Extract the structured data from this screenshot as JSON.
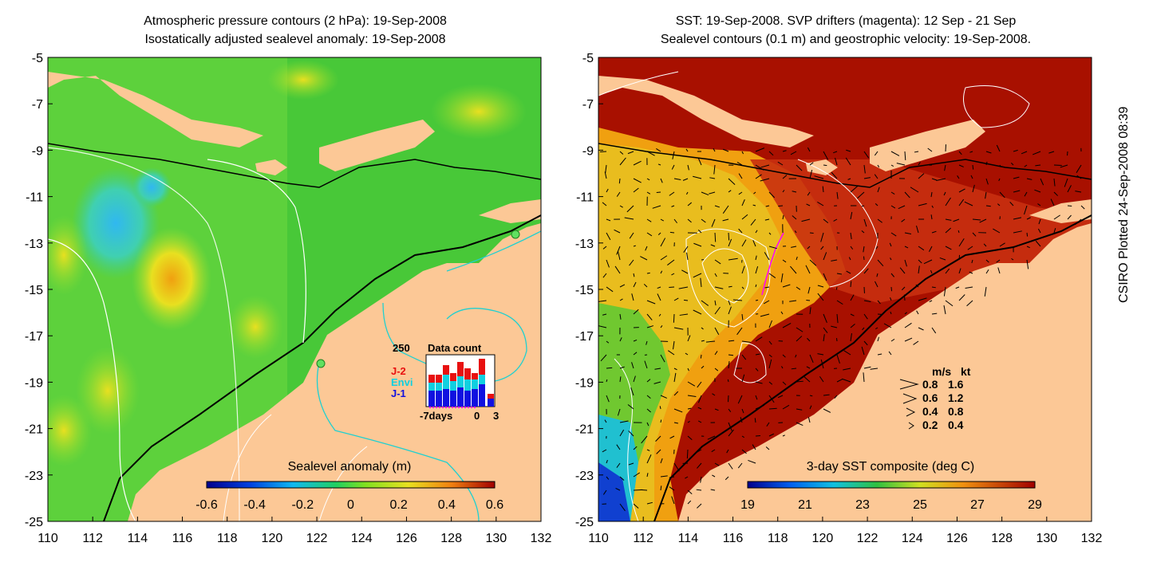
{
  "left_panel": {
    "title_line1": "Atmospheric pressure contours (2 hPa): 19-Sep-2008",
    "title_line2": "Isostatically adjusted sealevel anomaly: 19-Sep-2008",
    "colorbar_label": "Sealevel anomaly (m)",
    "colorbar_ticks": [
      "-0.6",
      "-0.4",
      "-0.2",
      "0",
      "0.2",
      "0.4",
      "0.6"
    ],
    "inset": {
      "title": "Data count",
      "ymax_label": "250",
      "legend": [
        {
          "label": "J-2",
          "color": "#e81010"
        },
        {
          "label": "Envi",
          "color": "#10d0e0"
        },
        {
          "label": "J-1",
          "color": "#1010e0"
        }
      ],
      "xlabel_left": "-7days",
      "xlabel_mid": "0",
      "xlabel_right": "3"
    }
  },
  "right_panel": {
    "title_line1": "SST: 19-Sep-2008. SVP drifters (magenta): 12 Sep - 21 Sep",
    "title_line2": "Sealevel contours (0.1 m) and geostrophic velocity: 19-Sep-2008.",
    "colorbar_label": "3-day SST composite (deg C)",
    "colorbar_ticks": [
      "19",
      "21",
      "23",
      "25",
      "27",
      "29"
    ],
    "speed_legend": {
      "header_ms": "m/s",
      "header_kt": "kt",
      "rows": [
        {
          "ms": "0.8",
          "kt": "1.6"
        },
        {
          "ms": "0.6",
          "kt": "1.2"
        },
        {
          "ms": "0.4",
          "kt": "0.8"
        },
        {
          "ms": "0.2",
          "kt": "0.4"
        }
      ]
    }
  },
  "axes": {
    "lat_labels": [
      "-5",
      "-7",
      "-9",
      "-11",
      "-13",
      "-15",
      "-17",
      "-19",
      "-21",
      "-23",
      "-25"
    ],
    "lon_labels": [
      "110",
      "112",
      "114",
      "116",
      "118",
      "120",
      "122",
      "124",
      "126",
      "128",
      "130",
      "132"
    ]
  },
  "credit": "CSIRO Plotted 24-Sep-2008 08:39",
  "colors": {
    "land": "#fcc896",
    "ocean_green": "#30c030",
    "sst_red": "#a81000",
    "contour_cyan": "#20d0d0"
  }
}
